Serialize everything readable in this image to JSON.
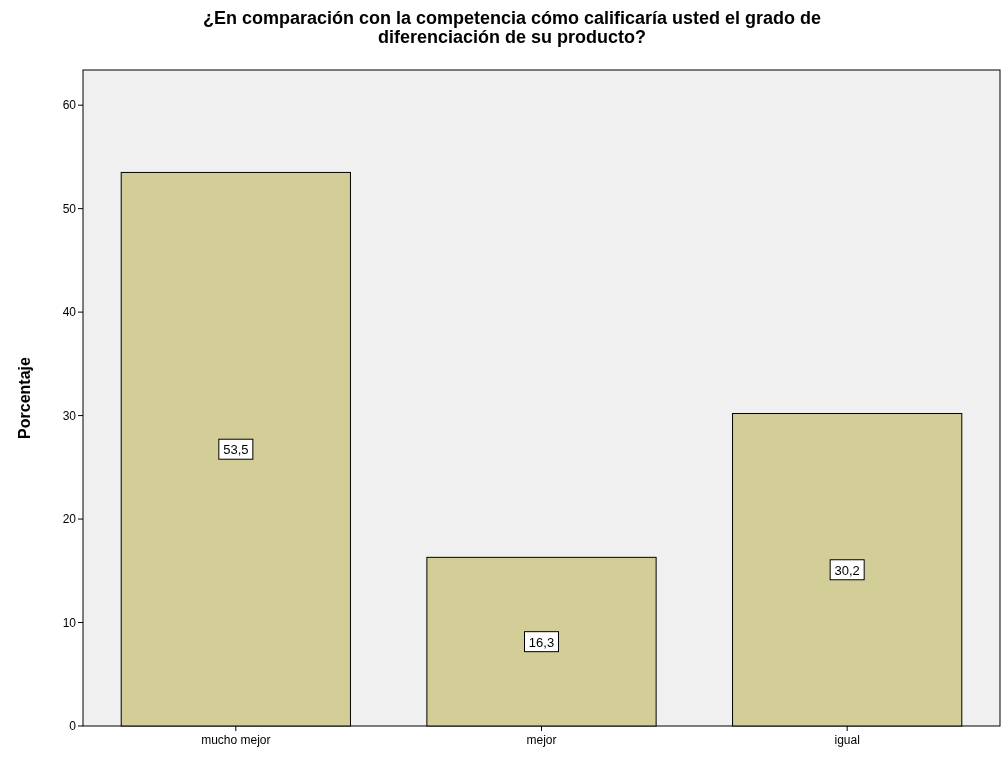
{
  "chart_data": {
    "type": "bar",
    "title": "¿En comparación con la competencia cómo calificaría usted el grado de diferenciación de su producto?",
    "ylabel": "Porcentaje",
    "categories": [
      "mucho mejor",
      "mejor",
      "igual"
    ],
    "values": [
      53.5,
      16.3,
      30.2
    ],
    "value_labels": [
      "53,5",
      "16,3",
      "30,2"
    ],
    "color": "#d3ce98",
    "ylim": [
      0,
      63.4
    ],
    "yticks": [
      0,
      10,
      20,
      30,
      40,
      50,
      60
    ]
  }
}
